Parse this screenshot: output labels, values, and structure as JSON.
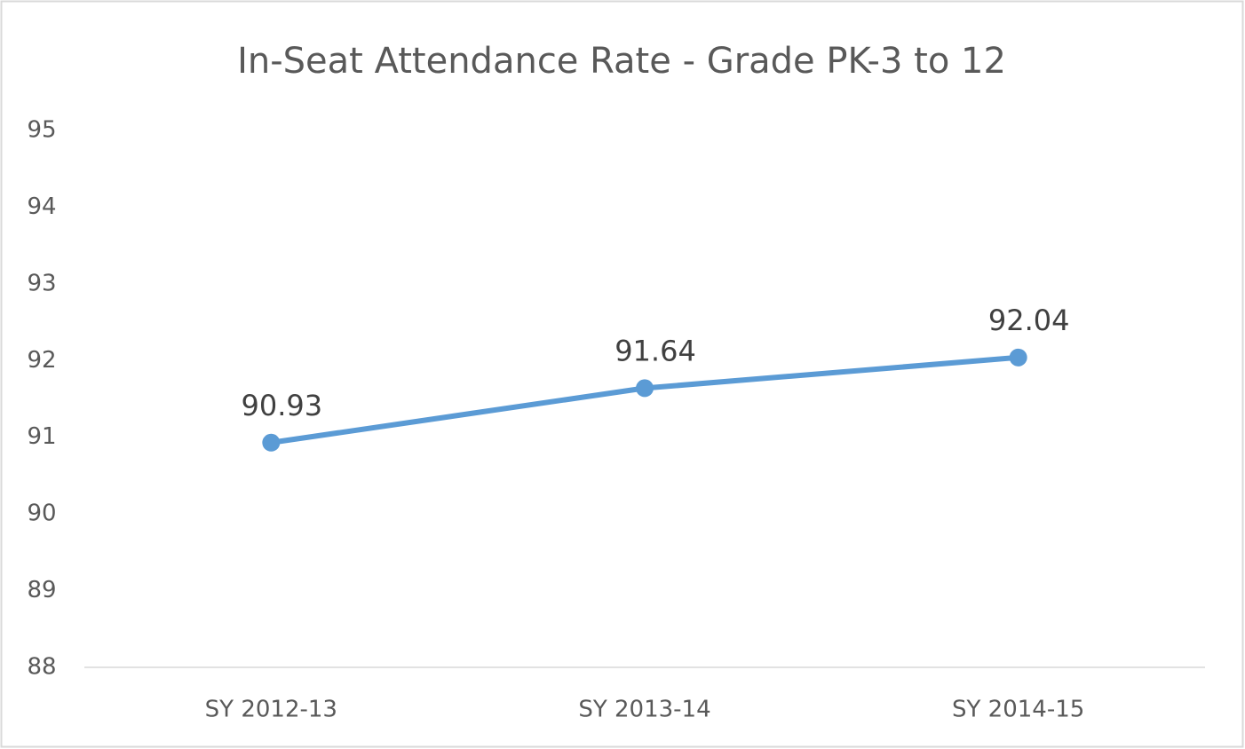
{
  "chart_data": {
    "type": "line",
    "title": "In-Seat Attendance Rate - Grade PK-3 to 12",
    "categories": [
      "SY 2012-13",
      "SY 2013-14",
      "SY 2014-15"
    ],
    "series": [
      {
        "color": "#5b9bd5",
        "values": [
          90.93,
          91.64,
          92.04
        ]
      }
    ],
    "ylim": [
      88,
      95
    ],
    "yticks": [
      88,
      89,
      90,
      91,
      92,
      93,
      94,
      95
    ],
    "grid": false,
    "data_labels": true
  }
}
